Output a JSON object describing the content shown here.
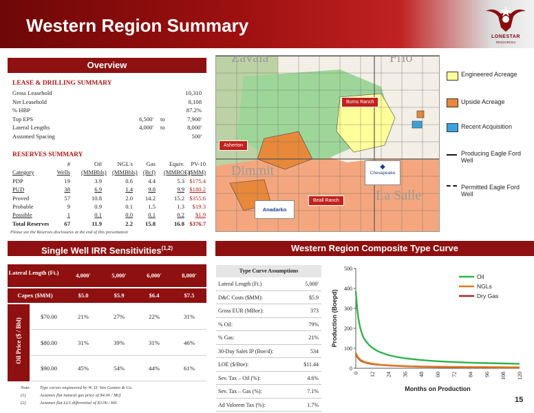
{
  "header": {
    "title": "Western Region Summary",
    "logo_word": "LONESTAR",
    "logo_sub": "RESOURCES"
  },
  "overview": {
    "bar_label": "Overview",
    "lease_heading": "LEASE & DRILLING SUMMARY",
    "lease_rows": [
      {
        "label": "Gross Leasehold",
        "val": "10,310"
      },
      {
        "label": "Net Leasehold",
        "val": "8,108"
      },
      {
        "label": "% HBP",
        "val": "87.2%"
      },
      {
        "label": "Top EPS",
        "from": "6,500'",
        "to": "to",
        "val": "7,900'"
      },
      {
        "label": "Lateral Lengths",
        "from": "4,000'",
        "to": "to",
        "val": "8,000'"
      },
      {
        "label": "Assumed Spacing",
        "val": "500'"
      }
    ],
    "reserves_heading": "RESERVES SUMMARY",
    "res_head1": [
      "",
      "#",
      "Oil",
      "NGL's",
      "Gas",
      "Equiv.",
      "PV-10"
    ],
    "res_head2": [
      "Category",
      "Wells",
      "(MMBbls)",
      "(MMBbls)",
      "(Bcf)",
      "(MMBOE)",
      "($MM)"
    ],
    "res_rows": [
      {
        "cat": "PDP",
        "wells": "19",
        "oil": "3.9",
        "ngl": "0.6",
        "gas": "4.4",
        "eq": "5.3",
        "pv": "$175.4"
      },
      {
        "cat": "PUD",
        "wells": "38",
        "oil": "6.9",
        "ngl": "1.4",
        "gas": "9.8",
        "eq": "9.9",
        "pv": "$180.2"
      },
      {
        "cat": "Proved",
        "wells": "57",
        "oil": "10.8",
        "ngl": "2.0",
        "gas": "14.2",
        "eq": "15.2",
        "pv": "$355.6"
      },
      {
        "cat": "Probable",
        "wells": "9",
        "oil": "0.9",
        "ngl": "0.1",
        "gas": "1.5",
        "eq": "1.3",
        "pv": "$19.3"
      },
      {
        "cat": "Possible",
        "wells": "1",
        "oil": "0.1",
        "ngl": "0.0",
        "gas": "0.1",
        "eq": "0.2",
        "pv": "$1.9"
      },
      {
        "cat": "Total Reserves",
        "wells": "67",
        "oil": "11.9",
        "ngl": "2.2",
        "gas": "15.8",
        "eq": "16.8",
        "pv": "$376.7"
      }
    ],
    "disclosure": "Please see the Reserves disclosures at the end of this presentation"
  },
  "map": {
    "labels": [
      "Zavala",
      "Frio",
      "Dimmit",
      "La Salle"
    ],
    "callouts": {
      "burns": "Burns Ranch",
      "asherton": "Asherton",
      "beall": "Beall Ranch"
    },
    "logos": {
      "chesapeake": "Chesapeake",
      "anadarko": "Anadarko"
    },
    "legend": [
      {
        "label": "Engineered Acreage",
        "color": "#ffff99"
      },
      {
        "label": "Upside Acreage",
        "color": "#e8883a"
      },
      {
        "label": "Recent Acquisition",
        "color": "#3aa3e0"
      },
      {
        "label": "Producing Eagle Ford Well"
      },
      {
        "label": "Permitted Eagle Ford Well"
      }
    ]
  },
  "irr": {
    "bar_label": "Single Well IRR Sensitivities",
    "bar_sup": "(1,2)",
    "header": [
      "Lateral Length (Ft.)",
      "4,000'",
      "5,000'",
      "6,000'",
      "8,000'"
    ],
    "capex": [
      "Capex ($MM)",
      "$5.0",
      "$5.9",
      "$6.4",
      "$7.5"
    ],
    "side_label": "Oil Price ($ / Bbl)",
    "rows": [
      {
        "price": "$70.00",
        "vals": [
          "21%",
          "27%",
          "22%",
          "31%"
        ]
      },
      {
        "price": "$80.00",
        "vals": [
          "31%",
          "39%",
          "31%",
          "46%"
        ]
      },
      {
        "price": "$90.00",
        "vals": [
          "45%",
          "54%",
          "44%",
          "61%"
        ]
      }
    ],
    "notes": [
      {
        "k": "Note:",
        "v": "Type curves engineered by W. D. Von Gonten & Co."
      },
      {
        "k": "(1)",
        "v": "Assumes flat natural gas price of $4.00 / Mcf."
      },
      {
        "k": "(2)",
        "v": "Assumes flat LLS differential of $3.00 / bbl."
      }
    ]
  },
  "typecurve": {
    "bar_label": "Western Region Composite Type Curve",
    "table_title": "Type Curve Assumptions",
    "rows": [
      {
        "k": "Lateral Length (Ft.)",
        "v": "5,000'"
      },
      {
        "k": "D&C Costs ($MM):",
        "v": "$5.9"
      },
      {
        "k": "Gross EUR (MBoe):",
        "v": "373"
      },
      {
        "k": "% Oil:",
        "v": "79%"
      },
      {
        "k": "% Gas:",
        "v": "21%"
      },
      {
        "k": "30-Day Sales IP (Boe/d):",
        "v": "534"
      },
      {
        "k": "LOE ($/Boe):",
        "v": "$11.44"
      },
      {
        "k": "Sev. Tax – Oil (%):",
        "v": "4.6%"
      },
      {
        "k": "Sev. Tax – Gas (%):",
        "v": "7.1%"
      },
      {
        "k": "Ad Valorem Tax (%):",
        "v": "1.7%"
      }
    ]
  },
  "chart_data": {
    "type": "line",
    "xlabel": "Months on Production",
    "ylabel": "Production (Boepd)",
    "xlim": [
      0,
      120
    ],
    "ylim": [
      0,
      500
    ],
    "xticks": [
      0,
      12,
      24,
      36,
      48,
      60,
      72,
      84,
      96,
      108,
      120
    ],
    "yticks": [
      0,
      100,
      200,
      300,
      400,
      500
    ],
    "legend": "top-right",
    "series": [
      {
        "name": "Oil",
        "color": "#2fb14a",
        "x": [
          0,
          1,
          2,
          3,
          4,
          5,
          6,
          8,
          10,
          12,
          15,
          18,
          24,
          30,
          36,
          48,
          60,
          72,
          84,
          96,
          108,
          120
        ],
        "y": [
          385,
          300,
          245,
          210,
          185,
          165,
          150,
          130,
          115,
          103,
          90,
          80,
          66,
          57,
          50,
          41,
          35,
          31,
          28,
          26,
          24,
          22
        ]
      },
      {
        "name": "NGLs",
        "color": "#e07a1f",
        "x": [
          0,
          1,
          2,
          3,
          4,
          6,
          8,
          12,
          18,
          24,
          36,
          48,
          60,
          72,
          84,
          96,
          108,
          120
        ],
        "y": [
          78,
          62,
          52,
          45,
          40,
          33,
          29,
          23,
          18,
          15,
          11,
          9,
          8,
          7,
          6,
          6,
          5,
          5
        ]
      },
      {
        "name": "Dry Gas",
        "color": "#9e2a2a",
        "x": [
          0,
          1,
          2,
          3,
          4,
          6,
          8,
          12,
          18,
          24,
          36,
          48,
          60,
          72,
          84,
          96,
          108,
          120
        ],
        "y": [
          72,
          58,
          48,
          42,
          37,
          31,
          27,
          21,
          17,
          14,
          10,
          8,
          7,
          6,
          6,
          5,
          5,
          4
        ]
      }
    ]
  },
  "page_number": "15"
}
